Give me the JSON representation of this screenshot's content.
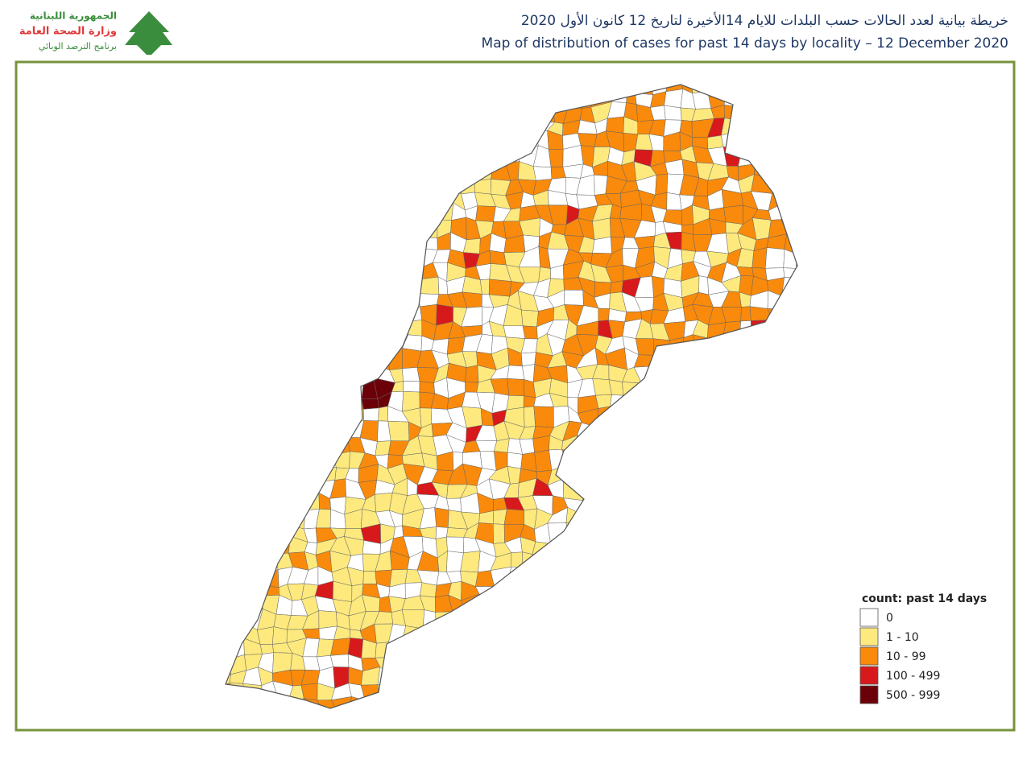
{
  "header": {
    "logo_lines": [
      "الجمهورية اللبنانية",
      "وزارة الصحة العامة",
      "برنامج الترصد الوبائي"
    ],
    "title_ar": "خريطة بيانية لعدد الحالات حسب البلدات للايام 14الأخيرة لتاريخ  12 كانون الأول 2020",
    "title_en": "Map of distribution of cases for past 14 days by locality – 12 December 2020"
  },
  "legend": {
    "title": "count: past 14 days",
    "items": [
      {
        "label": "0",
        "color": "#ffffff"
      },
      {
        "label": "1 - 10",
        "color": "#fde97e"
      },
      {
        "label": "10 - 99",
        "color": "#f98a0b"
      },
      {
        "label": "100 - 499",
        "color": "#d7191c"
      },
      {
        "label": "500 - 999",
        "color": "#6b0009"
      }
    ]
  }
}
